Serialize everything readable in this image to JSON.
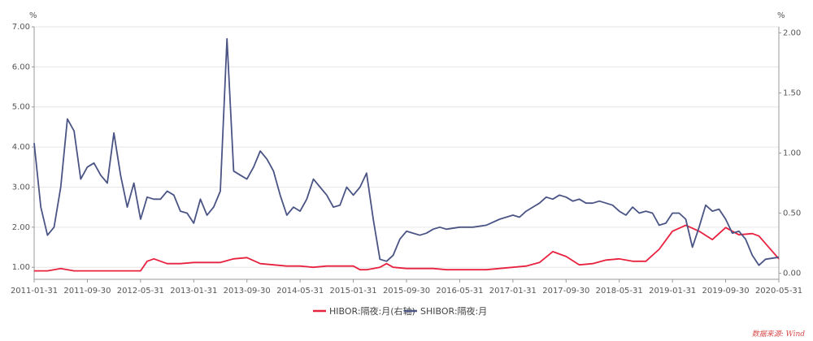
{
  "chart_data": {
    "type": "line",
    "left_unit": "%",
    "right_unit": "%",
    "y_left_lim": [
      0.7,
      7.0
    ],
    "y_left_ticks": [
      "1.00",
      "2.00",
      "3.00",
      "4.00",
      "5.00",
      "6.00",
      "7.00"
    ],
    "y_right_lim": [
      -0.05,
      2.05
    ],
    "y_right_ticks": [
      "0.00",
      "0.50",
      "1.00",
      "1.50",
      "2.00"
    ],
    "x_tick_labels": [
      "2011-01-31",
      "2011-09-30",
      "2012-05-31",
      "2013-01-31",
      "2013-09-30",
      "2014-05-31",
      "2015-01-31",
      "2015-09-30",
      "2016-05-31",
      "2017-01-31",
      "2017-09-30",
      "2018-05-31",
      "2019-01-31",
      "2019-09-30",
      "2020-05-31"
    ],
    "x_start": "2011-01-31",
    "x_end": "2020-05-31",
    "grid": true,
    "legend_position": "bottom",
    "series": [
      {
        "name": "HIBOR:隔夜:月(右轴)",
        "axis": "right",
        "color": "#e8213f",
        "points": [
          [
            "2011-01",
            0.02
          ],
          [
            "2011-03",
            0.02
          ],
          [
            "2011-05",
            0.04
          ],
          [
            "2011-07",
            0.02
          ],
          [
            "2011-09",
            0.02
          ],
          [
            "2011-11",
            0.02
          ],
          [
            "2012-01",
            0.02
          ],
          [
            "2012-03",
            0.02
          ],
          [
            "2012-05",
            0.02
          ],
          [
            "2012-06",
            0.1
          ],
          [
            "2012-07",
            0.12
          ],
          [
            "2012-09",
            0.08
          ],
          [
            "2012-11",
            0.08
          ],
          [
            "2013-01",
            0.09
          ],
          [
            "2013-03",
            0.09
          ],
          [
            "2013-05",
            0.09
          ],
          [
            "2013-07",
            0.12
          ],
          [
            "2013-09",
            0.13
          ],
          [
            "2013-11",
            0.08
          ],
          [
            "2014-01",
            0.07
          ],
          [
            "2014-03",
            0.06
          ],
          [
            "2014-05",
            0.06
          ],
          [
            "2014-07",
            0.05
          ],
          [
            "2014-09",
            0.06
          ],
          [
            "2014-11",
            0.06
          ],
          [
            "2015-01",
            0.06
          ],
          [
            "2015-02",
            0.03
          ],
          [
            "2015-03",
            0.03
          ],
          [
            "2015-05",
            0.05
          ],
          [
            "2015-06",
            0.08
          ],
          [
            "2015-07",
            0.05
          ],
          [
            "2015-09",
            0.04
          ],
          [
            "2015-11",
            0.04
          ],
          [
            "2016-01",
            0.04
          ],
          [
            "2016-03",
            0.03
          ],
          [
            "2016-05",
            0.03
          ],
          [
            "2016-07",
            0.03
          ],
          [
            "2016-09",
            0.03
          ],
          [
            "2016-11",
            0.04
          ],
          [
            "2017-01",
            0.05
          ],
          [
            "2017-03",
            0.06
          ],
          [
            "2017-05",
            0.09
          ],
          [
            "2017-07",
            0.18
          ],
          [
            "2017-09",
            0.14
          ],
          [
            "2017-11",
            0.07
          ],
          [
            "2018-01",
            0.08
          ],
          [
            "2018-03",
            0.11
          ],
          [
            "2018-05",
            0.12
          ],
          [
            "2018-07",
            0.1
          ],
          [
            "2018-09",
            0.1
          ],
          [
            "2018-11",
            0.2
          ],
          [
            "2019-01",
            0.35
          ],
          [
            "2019-03",
            0.4
          ],
          [
            "2019-05",
            0.35
          ],
          [
            "2019-07",
            0.28
          ],
          [
            "2019-09",
            0.38
          ],
          [
            "2019-11",
            0.32
          ],
          [
            "2020-01",
            0.33
          ],
          [
            "2020-02",
            0.31
          ],
          [
            "2020-05",
            0.12
          ]
        ]
      },
      {
        "name": "SHIBOR:隔夜:月",
        "axis": "left",
        "color": "#4a5485",
        "points": [
          [
            "2011-01",
            4.1
          ],
          [
            "2011-02",
            2.5
          ],
          [
            "2011-03",
            1.8
          ],
          [
            "2011-04",
            2.0
          ],
          [
            "2011-05",
            3.0
          ],
          [
            "2011-06",
            4.7
          ],
          [
            "2011-07",
            4.4
          ],
          [
            "2011-08",
            3.2
          ],
          [
            "2011-09",
            3.5
          ],
          [
            "2011-10",
            3.6
          ],
          [
            "2011-11",
            3.3
          ],
          [
            "2011-12",
            3.1
          ],
          [
            "2012-01",
            4.35
          ],
          [
            "2012-02",
            3.3
          ],
          [
            "2012-03",
            2.5
          ],
          [
            "2012-04",
            3.1
          ],
          [
            "2012-05",
            2.2
          ],
          [
            "2012-06",
            2.75
          ],
          [
            "2012-07",
            2.7
          ],
          [
            "2012-08",
            2.7
          ],
          [
            "2012-09",
            2.9
          ],
          [
            "2012-10",
            2.8
          ],
          [
            "2012-11",
            2.4
          ],
          [
            "2012-12",
            2.35
          ],
          [
            "2013-01",
            2.1
          ],
          [
            "2013-02",
            2.7
          ],
          [
            "2013-03",
            2.3
          ],
          [
            "2013-04",
            2.5
          ],
          [
            "2013-05",
            2.9
          ],
          [
            "2013-06",
            6.7
          ],
          [
            "2013-07",
            3.4
          ],
          [
            "2013-08",
            3.3
          ],
          [
            "2013-09",
            3.2
          ],
          [
            "2013-10",
            3.5
          ],
          [
            "2013-11",
            3.9
          ],
          [
            "2013-12",
            3.7
          ],
          [
            "2014-01",
            3.4
          ],
          [
            "2014-02",
            2.8
          ],
          [
            "2014-03",
            2.3
          ],
          [
            "2014-04",
            2.5
          ],
          [
            "2014-05",
            2.4
          ],
          [
            "2014-06",
            2.7
          ],
          [
            "2014-07",
            3.2
          ],
          [
            "2014-08",
            3.0
          ],
          [
            "2014-09",
            2.8
          ],
          [
            "2014-10",
            2.5
          ],
          [
            "2014-11",
            2.55
          ],
          [
            "2014-12",
            3.0
          ],
          [
            "2015-01",
            2.8
          ],
          [
            "2015-02",
            3.0
          ],
          [
            "2015-03",
            3.35
          ],
          [
            "2015-04",
            2.2
          ],
          [
            "2015-05",
            1.2
          ],
          [
            "2015-06",
            1.15
          ],
          [
            "2015-07",
            1.3
          ],
          [
            "2015-08",
            1.7
          ],
          [
            "2015-09",
            1.9
          ],
          [
            "2015-10",
            1.85
          ],
          [
            "2015-11",
            1.8
          ],
          [
            "2015-12",
            1.85
          ],
          [
            "2016-01",
            1.95
          ],
          [
            "2016-02",
            2.0
          ],
          [
            "2016-03",
            1.95
          ],
          [
            "2016-05",
            2.0
          ],
          [
            "2016-07",
            2.0
          ],
          [
            "2016-09",
            2.05
          ],
          [
            "2016-11",
            2.2
          ],
          [
            "2017-01",
            2.3
          ],
          [
            "2017-02",
            2.25
          ],
          [
            "2017-03",
            2.4
          ],
          [
            "2017-04",
            2.5
          ],
          [
            "2017-05",
            2.6
          ],
          [
            "2017-06",
            2.75
          ],
          [
            "2017-07",
            2.7
          ],
          [
            "2017-08",
            2.8
          ],
          [
            "2017-09",
            2.75
          ],
          [
            "2017-10",
            2.65
          ],
          [
            "2017-11",
            2.7
          ],
          [
            "2017-12",
            2.6
          ],
          [
            "2018-01",
            2.6
          ],
          [
            "2018-02",
            2.65
          ],
          [
            "2018-03",
            2.6
          ],
          [
            "2018-04",
            2.55
          ],
          [
            "2018-05",
            2.4
          ],
          [
            "2018-06",
            2.3
          ],
          [
            "2018-07",
            2.5
          ],
          [
            "2018-08",
            2.35
          ],
          [
            "2018-09",
            2.4
          ],
          [
            "2018-10",
            2.35
          ],
          [
            "2018-11",
            2.05
          ],
          [
            "2018-12",
            2.1
          ],
          [
            "2019-01",
            2.35
          ],
          [
            "2019-02",
            2.35
          ],
          [
            "2019-03",
            2.2
          ],
          [
            "2019-04",
            1.5
          ],
          [
            "2019-05",
            2.0
          ],
          [
            "2019-06",
            2.55
          ],
          [
            "2019-07",
            2.4
          ],
          [
            "2019-08",
            2.45
          ],
          [
            "2019-09",
            2.2
          ],
          [
            "2019-10",
            1.85
          ],
          [
            "2019-11",
            1.9
          ],
          [
            "2019-12",
            1.7
          ],
          [
            "2020-01",
            1.3
          ],
          [
            "2020-02",
            1.05
          ],
          [
            "2020-03",
            1.2
          ],
          [
            "2020-05",
            1.25
          ]
        ]
      }
    ]
  },
  "source_note": "数据来源: Wind"
}
